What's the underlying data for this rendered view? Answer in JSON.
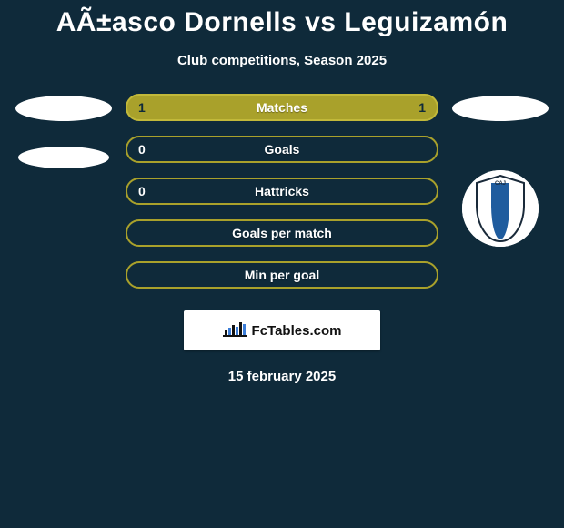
{
  "title": "AÃ±asco Dornells vs Leguizamón",
  "subtitle": "Club competitions, Season 2025",
  "date": "15 february 2025",
  "colors": {
    "pill_outline_border": "#a9a12b",
    "pill_filled_bg": "#a9a12b",
    "pill_filled_border": "#c2b93a",
    "crest_blue": "#1f5c9e",
    "crest_border": "#1a2a3a"
  },
  "crest_letters": "CAJ",
  "sponsor_text": "FcTables.com",
  "rows": [
    {
      "label": "Matches",
      "left": "1",
      "right": "1",
      "filled": true
    },
    {
      "label": "Goals",
      "left": "0",
      "right": "",
      "filled": false
    },
    {
      "label": "Hattricks",
      "left": "0",
      "right": "",
      "filled": false
    },
    {
      "label": "Goals per match",
      "left": "",
      "right": "",
      "filled": false
    },
    {
      "label": "Min per goal",
      "left": "",
      "right": "",
      "filled": false
    }
  ]
}
